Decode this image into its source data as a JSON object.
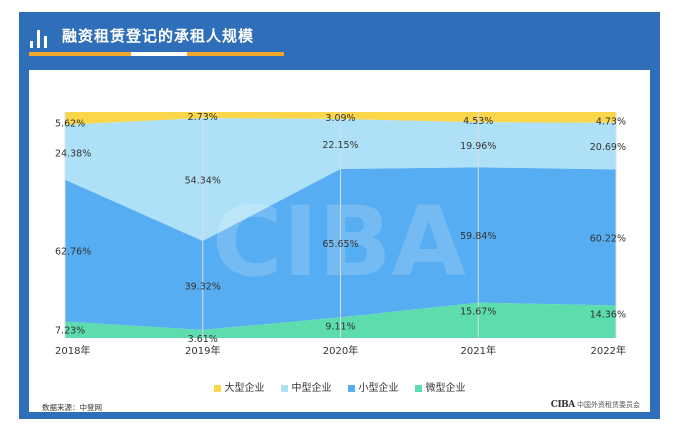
{
  "header": {
    "title": "融资租赁登记的承租人规模"
  },
  "footer": {
    "source": "数据来源：中登网",
    "brand_mark": "CIBA",
    "brand_text": "中国外资租赁委员会"
  },
  "colors": {
    "large": "#fbd64a",
    "medium": "#aee1f8",
    "small": "#56adf2",
    "micro": "#5ddcae",
    "frame": "#2f6fba"
  },
  "chart_data": {
    "type": "area",
    "stacked": true,
    "normalized": true,
    "x": [
      "2018年",
      "2019年",
      "2020年",
      "2021年",
      "2022年"
    ],
    "series": [
      {
        "name": "大型企业",
        "values": [
          5.62,
          2.73,
          3.09,
          4.53,
          4.73
        ],
        "labels": [
          "5.62%",
          "2.73%",
          "3.09%",
          "4.53%",
          "4.73%"
        ]
      },
      {
        "name": "中型企业",
        "values": [
          24.38,
          54.34,
          22.15,
          19.96,
          20.69
        ],
        "labels": [
          "24.38%",
          "54.34%",
          "22.15%",
          "19.96%",
          "20.69%"
        ]
      },
      {
        "name": "小型企业",
        "values": [
          62.76,
          39.32,
          65.65,
          59.84,
          60.22
        ],
        "labels": [
          "62.76%",
          "39.32%",
          "65.65%",
          "59.84%",
          "60.22%"
        ]
      },
      {
        "name": "微型企业",
        "values": [
          7.23,
          3.61,
          9.11,
          15.67,
          14.36
        ],
        "labels": [
          "7.23%",
          "3.61%",
          "9.11%",
          "15.67%",
          "14.36%"
        ]
      }
    ],
    "ylim": [
      0,
      100
    ],
    "grid": "vertical",
    "legend": "bottom"
  }
}
